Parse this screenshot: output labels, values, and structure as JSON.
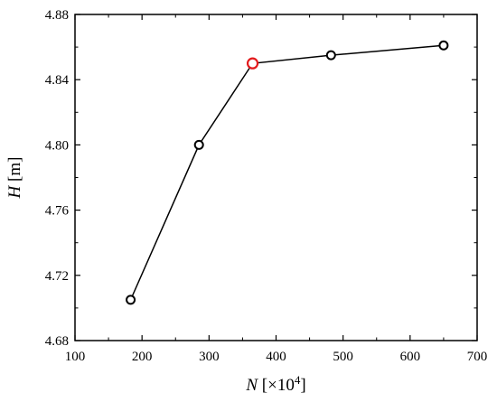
{
  "chart_data": {
    "type": "line",
    "xlabel": {
      "symbol": "N",
      "unit_prefix": " [×10",
      "exponent": "4",
      "unit_suffix": "]"
    },
    "ylabel": {
      "symbol": "H",
      "unit": " [m]"
    },
    "xlim": [
      100,
      700
    ],
    "ylim": [
      4.68,
      4.88
    ],
    "x_ticks": [
      100,
      200,
      300,
      400,
      500,
      600,
      700
    ],
    "x_tick_labels": [
      "100",
      "200",
      "300",
      "400",
      "500",
      "600",
      "700"
    ],
    "y_ticks": [
      4.68,
      4.72,
      4.76,
      4.8,
      4.84,
      4.88
    ],
    "y_tick_labels": [
      "4.68",
      "4.72",
      "4.76",
      "4.80",
      "4.84",
      "4.88"
    ],
    "grid": false,
    "series": [
      {
        "x": [
          183,
          285,
          365,
          482,
          650
        ],
        "y": [
          4.705,
          4.8,
          4.85,
          4.855,
          4.861
        ],
        "line_color": "#000000",
        "marker_color": "#000000",
        "highlight_index": 2,
        "highlight_color": "#e31a1c"
      }
    ]
  }
}
